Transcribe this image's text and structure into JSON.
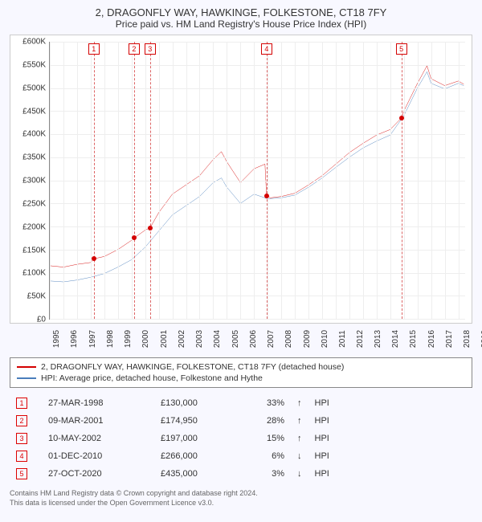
{
  "title": {
    "line1": "2, DRAGONFLY WAY, HAWKINGE, FOLKESTONE, CT18 7FY",
    "line2": "Price paid vs. HM Land Registry's House Price Index (HPI)"
  },
  "chart": {
    "type": "line",
    "background_color": "#ffffff",
    "grid_color": "#eeeeee",
    "axis_color": "#888888",
    "x_min": 1995,
    "x_max": 2025.5,
    "y_min": 0,
    "y_max": 600000,
    "y_ticks": [
      0,
      50000,
      100000,
      150000,
      200000,
      250000,
      300000,
      350000,
      400000,
      450000,
      500000,
      550000,
      600000
    ],
    "y_tick_labels": [
      "£0",
      "£50K",
      "£100K",
      "£150K",
      "£200K",
      "£250K",
      "£300K",
      "£350K",
      "£400K",
      "£450K",
      "£500K",
      "£550K",
      "£600K"
    ],
    "x_ticks": [
      1995,
      1996,
      1997,
      1998,
      1999,
      2000,
      2001,
      2002,
      2003,
      2004,
      2005,
      2006,
      2007,
      2008,
      2009,
      2010,
      2011,
      2012,
      2013,
      2014,
      2015,
      2016,
      2017,
      2018,
      2019,
      2020,
      2021,
      2022,
      2023,
      2024,
      2025
    ],
    "series": [
      {
        "name": "property",
        "label": "2, DRAGONFLY WAY, HAWKINGE, FOLKESTONE, CT18 7FY (detached house)",
        "color": "#d40000",
        "line_width": 1.5,
        "data": [
          [
            1995,
            115000
          ],
          [
            1996,
            112000
          ],
          [
            1997,
            118000
          ],
          [
            1998,
            122000
          ],
          [
            1998.23,
            130000
          ],
          [
            1999,
            135000
          ],
          [
            2000,
            150000
          ],
          [
            2001,
            170000
          ],
          [
            2001.19,
            174950
          ],
          [
            2002,
            192000
          ],
          [
            2002.36,
            197000
          ],
          [
            2003,
            230000
          ],
          [
            2004,
            270000
          ],
          [
            2005,
            290000
          ],
          [
            2006,
            310000
          ],
          [
            2007,
            345000
          ],
          [
            2007.6,
            362000
          ],
          [
            2008,
            340000
          ],
          [
            2009,
            295000
          ],
          [
            2010,
            325000
          ],
          [
            2010.8,
            335000
          ],
          [
            2010.92,
            266000
          ],
          [
            2011.2,
            262000
          ],
          [
            2012,
            265000
          ],
          [
            2013,
            272000
          ],
          [
            2014,
            290000
          ],
          [
            2015,
            310000
          ],
          [
            2016,
            335000
          ],
          [
            2017,
            360000
          ],
          [
            2018,
            380000
          ],
          [
            2019,
            398000
          ],
          [
            2020,
            410000
          ],
          [
            2020.82,
            435000
          ],
          [
            2021,
            450000
          ],
          [
            2022,
            510000
          ],
          [
            2022.7,
            548000
          ],
          [
            2023,
            520000
          ],
          [
            2024,
            505000
          ],
          [
            2025,
            515000
          ],
          [
            2025.4,
            508000
          ]
        ]
      },
      {
        "name": "hpi",
        "label": "HPI: Average price, detached house, Folkestone and Hythe",
        "color": "#4a7ebb",
        "line_width": 1.5,
        "data": [
          [
            1995,
            82000
          ],
          [
            1996,
            80000
          ],
          [
            1997,
            84000
          ],
          [
            1998,
            90000
          ],
          [
            1999,
            98000
          ],
          [
            2000,
            112000
          ],
          [
            2001,
            128000
          ],
          [
            2002,
            155000
          ],
          [
            2003,
            190000
          ],
          [
            2004,
            225000
          ],
          [
            2005,
            245000
          ],
          [
            2006,
            265000
          ],
          [
            2007,
            295000
          ],
          [
            2007.6,
            305000
          ],
          [
            2008,
            285000
          ],
          [
            2009,
            250000
          ],
          [
            2010,
            270000
          ],
          [
            2011,
            260000
          ],
          [
            2012,
            262000
          ],
          [
            2013,
            268000
          ],
          [
            2014,
            285000
          ],
          [
            2015,
            305000
          ],
          [
            2016,
            328000
          ],
          [
            2017,
            350000
          ],
          [
            2018,
            370000
          ],
          [
            2019,
            385000
          ],
          [
            2020,
            398000
          ],
          [
            2021,
            440000
          ],
          [
            2022,
            500000
          ],
          [
            2022.7,
            535000
          ],
          [
            2023,
            510000
          ],
          [
            2024,
            498000
          ],
          [
            2025,
            510000
          ],
          [
            2025.4,
            505000
          ]
        ]
      }
    ],
    "markers": [
      {
        "n": 1,
        "x": 1998.23,
        "y": 130000
      },
      {
        "n": 2,
        "x": 2001.19,
        "y": 174950
      },
      {
        "n": 3,
        "x": 2002.36,
        "y": 197000
      },
      {
        "n": 4,
        "x": 2010.92,
        "y": 266000
      },
      {
        "n": 5,
        "x": 2020.82,
        "y": 435000
      }
    ],
    "marker_box_color": "#d40000",
    "marker_line_color": "#dd6666"
  },
  "legend": {
    "items": [
      {
        "color": "#d40000",
        "label": "2, DRAGONFLY WAY, HAWKINGE, FOLKESTONE, CT18 7FY (detached house)"
      },
      {
        "color": "#4a7ebb",
        "label": "HPI: Average price, detached house, Folkestone and Hythe"
      }
    ]
  },
  "transactions": {
    "columns": [
      "n",
      "date",
      "price",
      "pct",
      "arrow",
      "suffix"
    ],
    "rows": [
      {
        "n": "1",
        "date": "27-MAR-1998",
        "price": "£130,000",
        "pct": "33%",
        "arrow": "↑",
        "suffix": "HPI"
      },
      {
        "n": "2",
        "date": "09-MAR-2001",
        "price": "£174,950",
        "pct": "28%",
        "arrow": "↑",
        "suffix": "HPI"
      },
      {
        "n": "3",
        "date": "10-MAY-2002",
        "price": "£197,000",
        "pct": "15%",
        "arrow": "↑",
        "suffix": "HPI"
      },
      {
        "n": "4",
        "date": "01-DEC-2010",
        "price": "£266,000",
        "pct": "6%",
        "arrow": "↓",
        "suffix": "HPI"
      },
      {
        "n": "5",
        "date": "27-OCT-2020",
        "price": "£435,000",
        "pct": "3%",
        "arrow": "↓",
        "suffix": "HPI"
      }
    ]
  },
  "footer": {
    "line1": "Contains HM Land Registry data © Crown copyright and database right 2024.",
    "line2": "This data is licensed under the Open Government Licence v3.0."
  }
}
